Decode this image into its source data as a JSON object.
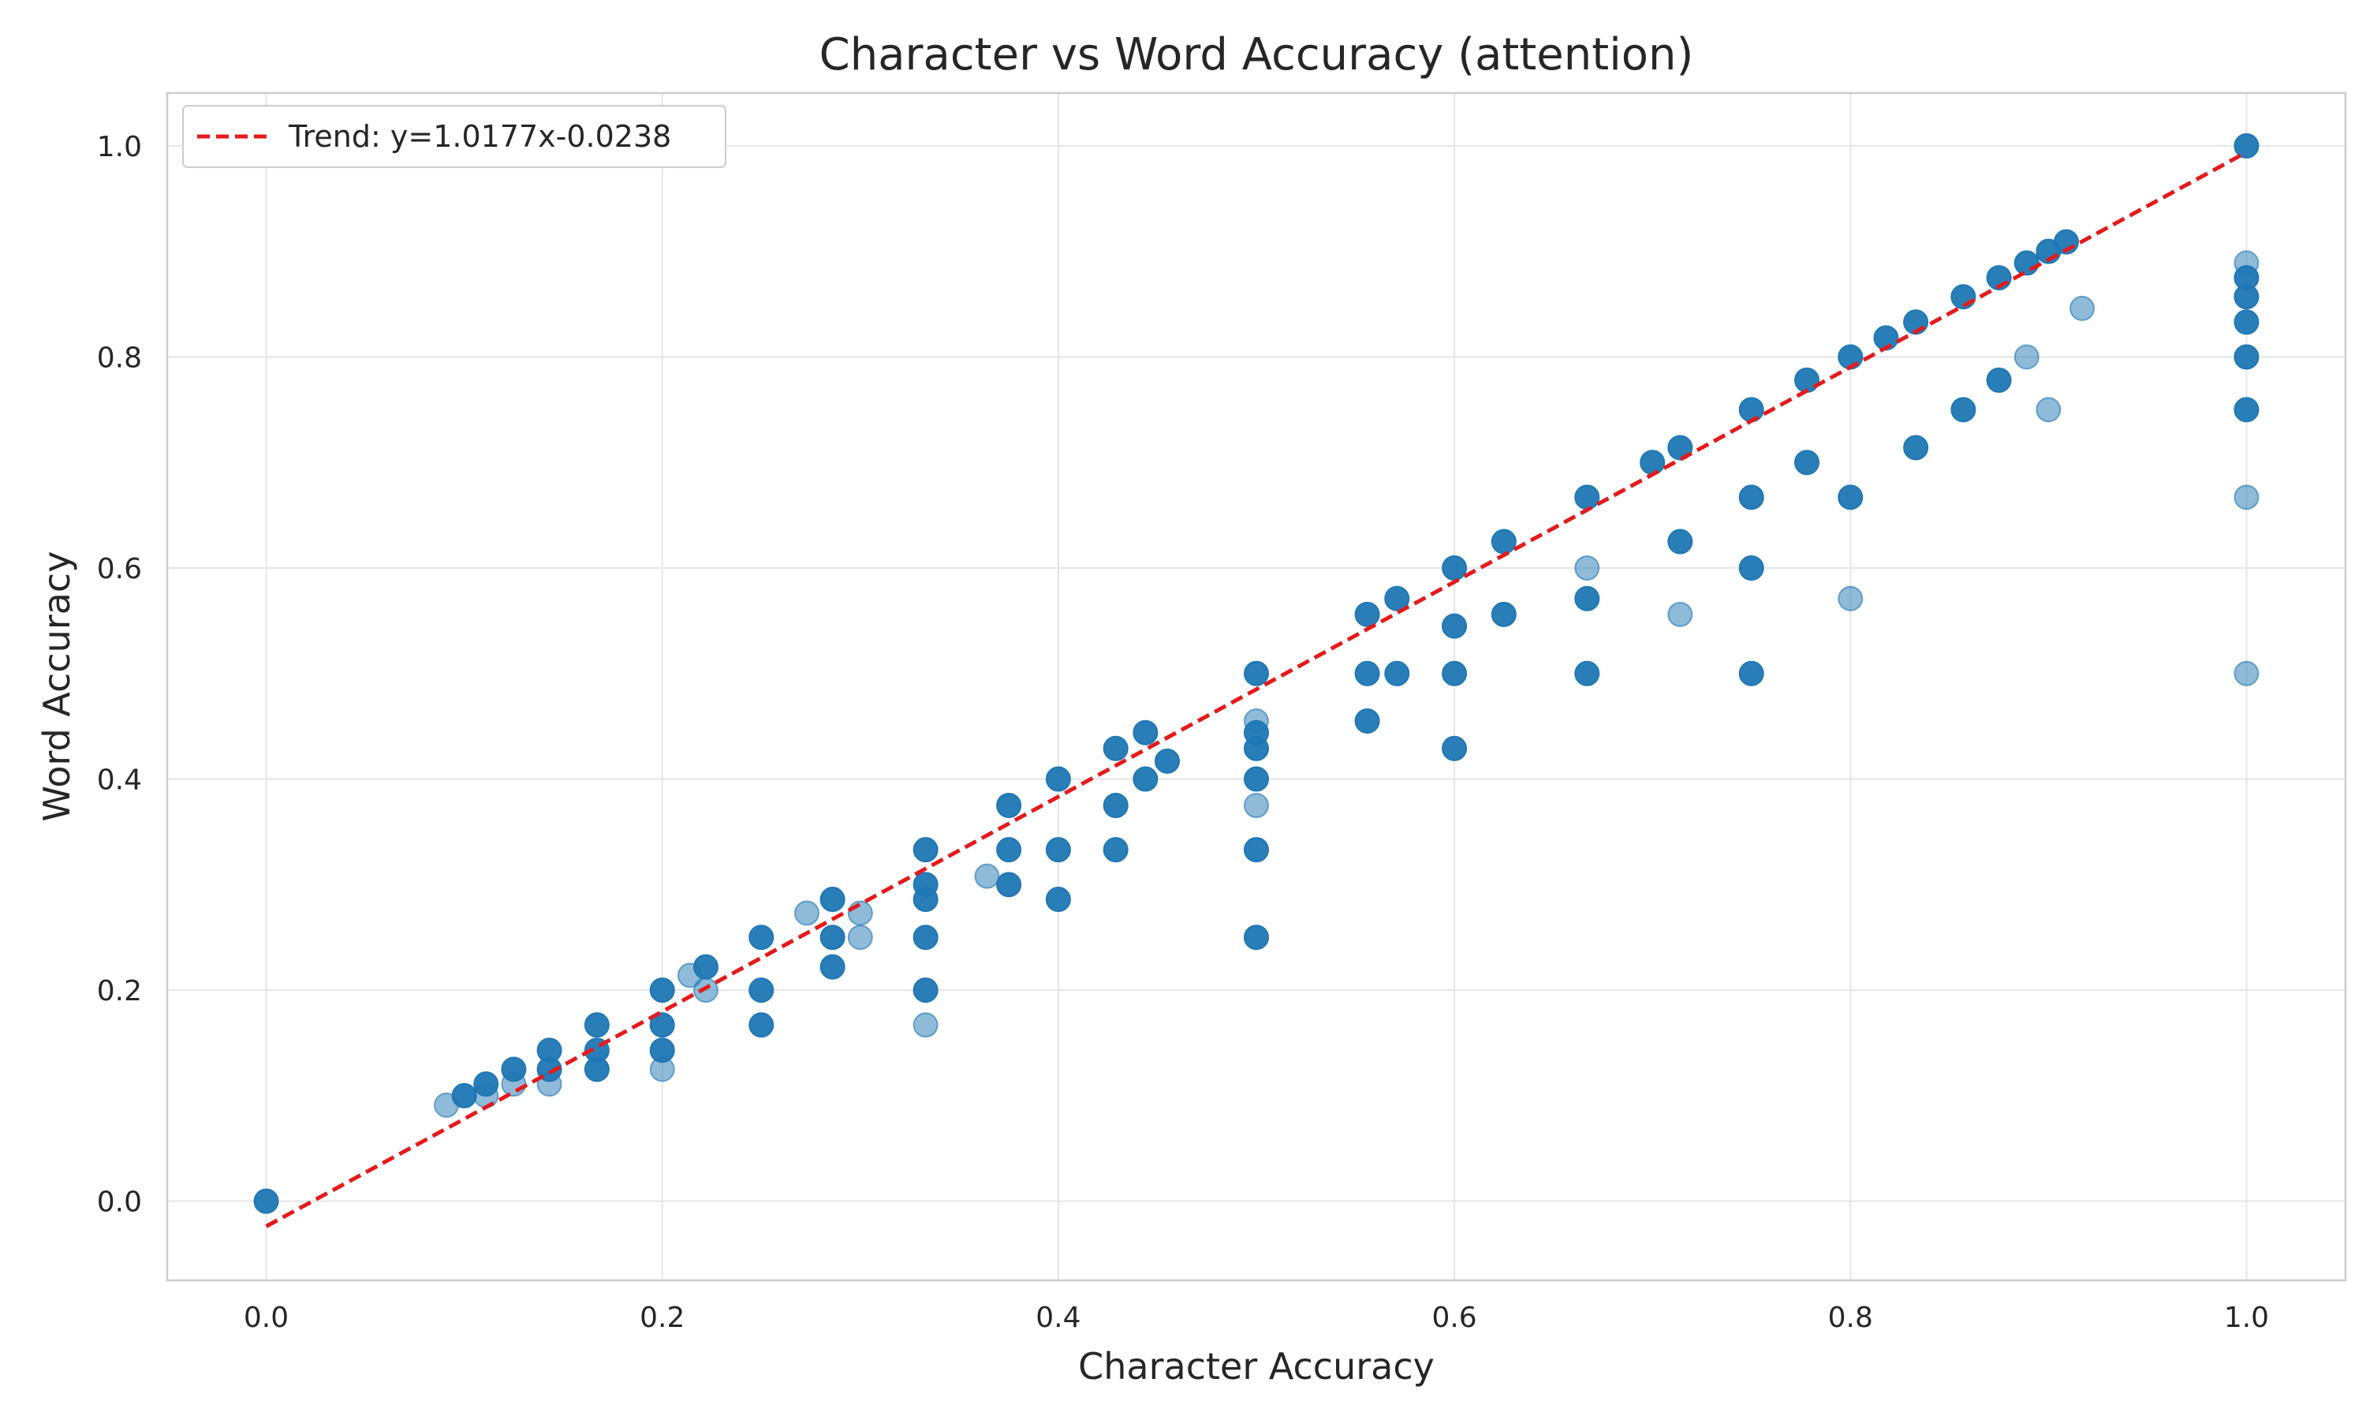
{
  "chart_data": {
    "type": "scatter",
    "title": "Character vs Word Accuracy (attention)",
    "xlabel": "Character Accuracy",
    "ylabel": "Word Accuracy",
    "xlim": [
      -0.05,
      1.05
    ],
    "ylim": [
      -0.075,
      1.05
    ],
    "xticks": [
      0.0,
      0.2,
      0.4,
      0.6,
      0.8,
      1.0
    ],
    "yticks": [
      0.0,
      0.2,
      0.4,
      0.6,
      0.8,
      1.0
    ],
    "xtick_labels": [
      "0.0",
      "0.2",
      "0.4",
      "0.6",
      "0.8",
      "1.0"
    ],
    "ytick_labels": [
      "0.0",
      "0.2",
      "0.4",
      "0.6",
      "0.8",
      "1.0"
    ],
    "grid": true,
    "legend": {
      "placement": "top-left",
      "entries": [
        "Trend: y=1.0177x-0.0238"
      ]
    },
    "point_color": "#1f77b4",
    "trend_color": "#e41a1c",
    "trend": {
      "slope": 1.0177,
      "intercept": -0.0238,
      "x_range": [
        0.0,
        1.0
      ],
      "label": "Trend: y=1.0177x-0.0238"
    },
    "points": [
      [
        0.0,
        0.0,
        "d"
      ],
      [
        0.091,
        0.091,
        "l"
      ],
      [
        0.1,
        0.1,
        "d"
      ],
      [
        0.111,
        0.111,
        "d"
      ],
      [
        0.111,
        0.1,
        "l"
      ],
      [
        0.125,
        0.125,
        "d"
      ],
      [
        0.125,
        0.111,
        "l"
      ],
      [
        0.143,
        0.143,
        "d"
      ],
      [
        0.143,
        0.125,
        "d"
      ],
      [
        0.143,
        0.111,
        "l"
      ],
      [
        0.167,
        0.167,
        "d"
      ],
      [
        0.167,
        0.143,
        "d"
      ],
      [
        0.167,
        0.125,
        "d"
      ],
      [
        0.2,
        0.2,
        "d"
      ],
      [
        0.2,
        0.167,
        "d"
      ],
      [
        0.2,
        0.143,
        "d"
      ],
      [
        0.2,
        0.125,
        "l"
      ],
      [
        0.214,
        0.214,
        "l"
      ],
      [
        0.222,
        0.222,
        "d"
      ],
      [
        0.222,
        0.2,
        "l"
      ],
      [
        0.25,
        0.25,
        "d"
      ],
      [
        0.25,
        0.2,
        "d"
      ],
      [
        0.25,
        0.167,
        "d"
      ],
      [
        0.273,
        0.273,
        "l"
      ],
      [
        0.286,
        0.286,
        "d"
      ],
      [
        0.286,
        0.25,
        "d"
      ],
      [
        0.286,
        0.222,
        "d"
      ],
      [
        0.3,
        0.273,
        "l"
      ],
      [
        0.3,
        0.25,
        "l"
      ],
      [
        0.333,
        0.333,
        "d"
      ],
      [
        0.333,
        0.3,
        "d"
      ],
      [
        0.333,
        0.286,
        "d"
      ],
      [
        0.333,
        0.25,
        "d"
      ],
      [
        0.333,
        0.2,
        "d"
      ],
      [
        0.333,
        0.167,
        "l"
      ],
      [
        0.364,
        0.308,
        "l"
      ],
      [
        0.375,
        0.375,
        "d"
      ],
      [
        0.375,
        0.333,
        "d"
      ],
      [
        0.375,
        0.3,
        "d"
      ],
      [
        0.4,
        0.4,
        "d"
      ],
      [
        0.4,
        0.333,
        "d"
      ],
      [
        0.4,
        0.286,
        "d"
      ],
      [
        0.429,
        0.429,
        "d"
      ],
      [
        0.429,
        0.375,
        "d"
      ],
      [
        0.429,
        0.333,
        "d"
      ],
      [
        0.444,
        0.444,
        "d"
      ],
      [
        0.444,
        0.4,
        "d"
      ],
      [
        0.455,
        0.417,
        "d"
      ],
      [
        0.5,
        0.5,
        "d"
      ],
      [
        0.5,
        0.455,
        "l"
      ],
      [
        0.5,
        0.444,
        "d"
      ],
      [
        0.5,
        0.429,
        "d"
      ],
      [
        0.5,
        0.4,
        "d"
      ],
      [
        0.5,
        0.375,
        "l"
      ],
      [
        0.5,
        0.333,
        "d"
      ],
      [
        0.5,
        0.25,
        "d"
      ],
      [
        0.556,
        0.556,
        "d"
      ],
      [
        0.556,
        0.5,
        "d"
      ],
      [
        0.556,
        0.455,
        "d"
      ],
      [
        0.571,
        0.571,
        "d"
      ],
      [
        0.571,
        0.5,
        "d"
      ],
      [
        0.6,
        0.6,
        "d"
      ],
      [
        0.6,
        0.545,
        "d"
      ],
      [
        0.6,
        0.5,
        "d"
      ],
      [
        0.6,
        0.429,
        "d"
      ],
      [
        0.625,
        0.625,
        "d"
      ],
      [
        0.625,
        0.556,
        "d"
      ],
      [
        0.667,
        0.667,
        "d"
      ],
      [
        0.667,
        0.6,
        "l"
      ],
      [
        0.667,
        0.571,
        "d"
      ],
      [
        0.667,
        0.5,
        "d"
      ],
      [
        0.7,
        0.7,
        "d"
      ],
      [
        0.714,
        0.714,
        "d"
      ],
      [
        0.714,
        0.625,
        "d"
      ],
      [
        0.714,
        0.556,
        "l"
      ],
      [
        0.75,
        0.75,
        "d"
      ],
      [
        0.75,
        0.667,
        "d"
      ],
      [
        0.75,
        0.6,
        "d"
      ],
      [
        0.75,
        0.5,
        "d"
      ],
      [
        0.778,
        0.778,
        "d"
      ],
      [
        0.778,
        0.7,
        "d"
      ],
      [
        0.8,
        0.8,
        "d"
      ],
      [
        0.8,
        0.667,
        "d"
      ],
      [
        0.8,
        0.571,
        "l"
      ],
      [
        0.818,
        0.818,
        "d"
      ],
      [
        0.833,
        0.833,
        "d"
      ],
      [
        0.833,
        0.714,
        "d"
      ],
      [
        0.857,
        0.857,
        "d"
      ],
      [
        0.857,
        0.75,
        "d"
      ],
      [
        0.875,
        0.875,
        "d"
      ],
      [
        0.875,
        0.778,
        "d"
      ],
      [
        0.889,
        0.889,
        "d"
      ],
      [
        0.889,
        0.8,
        "l"
      ],
      [
        0.9,
        0.9,
        "d"
      ],
      [
        0.9,
        0.75,
        "l"
      ],
      [
        0.909,
        0.909,
        "d"
      ],
      [
        0.917,
        0.846,
        "l"
      ],
      [
        1.0,
        1.0,
        "d"
      ],
      [
        1.0,
        0.889,
        "l"
      ],
      [
        1.0,
        0.875,
        "d"
      ],
      [
        1.0,
        0.857,
        "d"
      ],
      [
        1.0,
        0.833,
        "d"
      ],
      [
        1.0,
        0.8,
        "d"
      ],
      [
        1.0,
        0.75,
        "d"
      ],
      [
        1.0,
        0.667,
        "l"
      ],
      [
        1.0,
        0.5,
        "l"
      ]
    ]
  }
}
